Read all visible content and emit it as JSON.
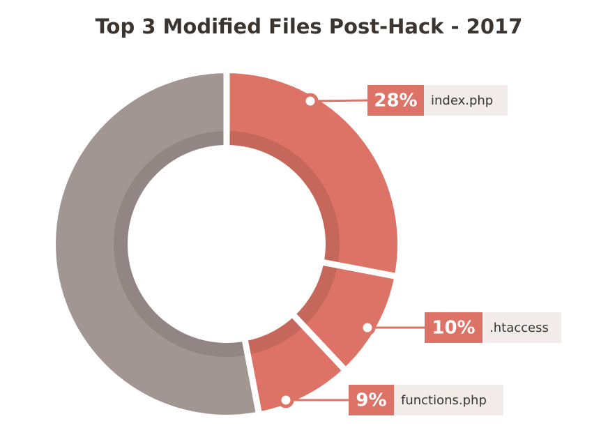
{
  "chart_data": {
    "type": "donut",
    "title": "Top 3 Modified Files Post-Hack - 2017",
    "categories": [
      "index.php",
      ".htaccess",
      "functions.php",
      null
    ],
    "values": [
      28,
      10,
      9,
      53
    ],
    "value_labels": [
      "28%",
      "10%",
      "9%",
      null
    ],
    "colors": [
      "#dc7366",
      "#dc7366",
      "#dc7366",
      "#a29693"
    ]
  }
}
